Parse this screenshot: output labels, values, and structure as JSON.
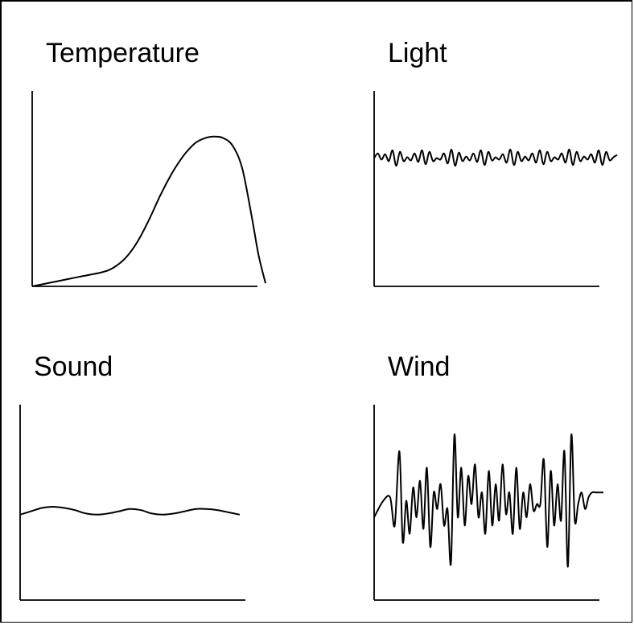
{
  "chart_data": [
    {
      "type": "line",
      "title": "Temperature",
      "xlabel": "",
      "ylabel": "",
      "grid": false,
      "xlim": [
        0,
        100
      ],
      "ylim": [
        0,
        100
      ],
      "series": [
        {
          "x": [
            0,
            10,
            20,
            30,
            35,
            40,
            45,
            50,
            55,
            60,
            63,
            66,
            70,
            74,
            78,
            82,
            86,
            90,
            94,
            97,
            100
          ],
          "y": [
            0,
            3,
            6,
            9,
            12,
            18,
            28,
            42,
            58,
            72,
            79,
            85,
            91,
            94,
            95,
            94,
            89,
            75,
            45,
            20,
            2
          ]
        }
      ]
    },
    {
      "type": "line",
      "title": "Light",
      "xlabel": "",
      "ylabel": "",
      "grid": false,
      "xlim": [
        0,
        100
      ],
      "ylim": [
        0,
        100
      ],
      "series": [
        {
          "x": [
            0,
            1.5,
            3,
            4.5,
            6,
            7.5,
            9,
            10.5,
            12,
            13.5,
            15,
            16.5,
            18,
            19.5,
            21,
            22.5,
            24,
            25.5,
            27,
            28.5,
            30,
            31.5,
            33,
            34.5,
            36,
            37.5,
            39,
            40.5,
            42,
            43.5,
            45,
            46.5,
            48,
            49.5,
            51,
            52.5,
            54,
            55.5,
            57,
            58.5,
            60,
            61.5,
            63,
            64.5,
            66,
            67.5,
            69,
            70.5,
            72,
            73.5,
            75,
            76.5,
            78,
            79.5,
            81,
            82.5,
            84,
            85.5,
            87,
            88.5,
            90,
            91.5,
            93,
            94.5,
            96,
            97.5,
            99
          ],
          "y": [
            62,
            68,
            60,
            67,
            58,
            72,
            52,
            70,
            58,
            63,
            59,
            68,
            57,
            72,
            54,
            70,
            58,
            62,
            60,
            68,
            55,
            73,
            52,
            69,
            58,
            64,
            59,
            68,
            57,
            72,
            53,
            70,
            59,
            63,
            60,
            67,
            56,
            73,
            53,
            70,
            58,
            64,
            59,
            68,
            56,
            72,
            54,
            70,
            58,
            63,
            60,
            68,
            56,
            73,
            53,
            70,
            58,
            64,
            60,
            67,
            56,
            72,
            53,
            70,
            59,
            63,
            66
          ]
        }
      ]
    },
    {
      "type": "line",
      "title": "Sound",
      "xlabel": "",
      "ylabel": "",
      "grid": false,
      "xlim": [
        0,
        100
      ],
      "ylim": [
        0,
        100
      ],
      "series": [
        {
          "x": [
            0,
            5,
            10,
            15,
            20,
            25,
            30,
            35,
            40,
            45,
            50,
            55,
            60,
            65,
            70,
            75,
            80,
            85,
            90,
            95,
            100
          ],
          "y": [
            43,
            46,
            49,
            50,
            49,
            47,
            44,
            43,
            44,
            46,
            48,
            47,
            44,
            43,
            44,
            46,
            48,
            48,
            47,
            45,
            43
          ]
        }
      ]
    },
    {
      "type": "line",
      "title": "Wind",
      "xlabel": "",
      "ylabel": "",
      "grid": false,
      "xlim": [
        0,
        100
      ],
      "ylim": [
        0,
        100
      ],
      "series": [
        {
          "x": [
            0,
            4,
            7,
            9,
            11,
            12.5,
            14,
            15.5,
            17,
            18.5,
            20,
            21.5,
            23,
            24.5,
            26,
            27.5,
            29,
            30.5,
            32,
            33.5,
            35,
            36.5,
            38,
            39.5,
            41,
            42.5,
            44,
            45.5,
            47,
            48.5,
            50,
            51.5,
            53,
            54.5,
            56,
            57.5,
            59,
            60.5,
            62,
            63.5,
            65,
            66.5,
            68,
            69.5,
            71,
            72.5,
            74,
            75.5,
            77,
            78.5,
            80,
            81.5,
            83,
            84.5,
            86,
            87.5,
            89,
            90.5,
            92,
            93.5,
            95,
            97,
            100
          ],
          "y": [
            40,
            50,
            52,
            35,
            80,
            25,
            50,
            30,
            58,
            40,
            62,
            33,
            70,
            22,
            55,
            45,
            60,
            35,
            45,
            12,
            90,
            40,
            70,
            35,
            65,
            48,
            72,
            40,
            55,
            30,
            68,
            35,
            60,
            38,
            72,
            42,
            55,
            30,
            70,
            33,
            55,
            40,
            60,
            44,
            48,
            48,
            75,
            22,
            68,
            35,
            60,
            38,
            80,
            10,
            90,
            38,
            48,
            55,
            45,
            52,
            55,
            55,
            55
          ]
        }
      ]
    }
  ]
}
